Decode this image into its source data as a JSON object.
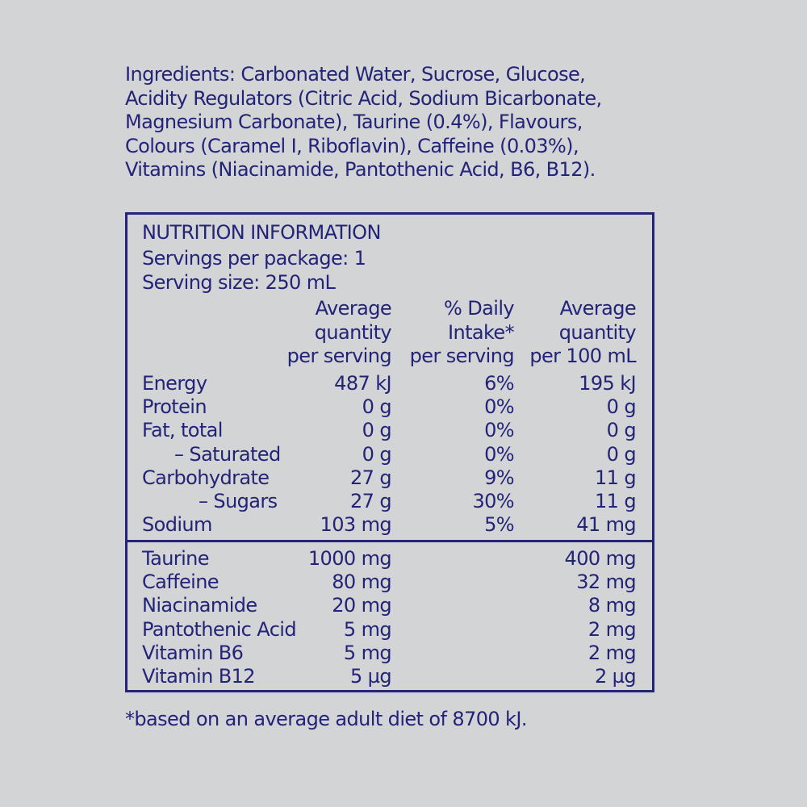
{
  "ingredients": {
    "lines": [
      "Ingredients: Carbonated Water, Sucrose, Glucose,",
      "Acidity Regulators (Citric Acid, Sodium Bicarbonate,",
      "Magnesium Carbonate), Taurine (0.4%), Flavours,",
      "Colours (Caramel I, Riboflavin), Caffeine (0.03%),",
      "Vitamins (Niacinamide, Pantothenic Acid, B6, B12)."
    ]
  },
  "nutrition": {
    "heading": "NUTRITION INFORMATION",
    "servings_per_package": "Servings per package: 1",
    "serving_size": "Serving size: 250 mL",
    "columns": [
      [
        "Average",
        "quantity",
        "per serving"
      ],
      [
        "% Daily",
        "Intake*",
        "per serving"
      ],
      [
        "Average",
        "quantity",
        "per 100 mL"
      ]
    ],
    "rows": [
      {
        "name": "Energy",
        "per_serving": "487 kJ",
        "daily_intake": "6%",
        "per_100ml": "195 kJ"
      },
      {
        "name": "Protein",
        "per_serving": "0 g",
        "daily_intake": "0%",
        "per_100ml": "0 g"
      },
      {
        "name": "Fat, total",
        "per_serving": "0 g",
        "daily_intake": "0%",
        "per_100ml": "0 g"
      },
      {
        "name": "– Saturated",
        "per_serving": "0 g",
        "daily_intake": "0%",
        "per_100ml": "0 g"
      },
      {
        "name": "Carbohydrate",
        "per_serving": "27 g",
        "daily_intake": "9%",
        "per_100ml": "11 g"
      },
      {
        "name": "– Sugars",
        "per_serving": "27 g",
        "daily_intake": "30%",
        "per_100ml": "11 g"
      },
      {
        "name": "Sodium",
        "per_serving": "103 mg",
        "daily_intake": "5%",
        "per_100ml": "41 mg"
      }
    ],
    "extra_rows": [
      {
        "name": "Taurine",
        "per_serving": "1000 mg",
        "per_100ml": "400 mg"
      },
      {
        "name": "Caffeine",
        "per_serving": "80 mg",
        "per_100ml": "32 mg"
      },
      {
        "name": "Niacinamide",
        "per_serving": "20 mg",
        "per_100ml": "8 mg"
      },
      {
        "name": "Pantothenic Acid",
        "per_serving": "5 mg",
        "per_100ml": "2 mg"
      },
      {
        "name": "Vitamin B6",
        "per_serving": "5 mg",
        "per_100ml": "2 mg"
      },
      {
        "name": "Vitamin B12",
        "per_serving": "5  µg",
        "per_100ml": "2  µg"
      }
    ]
  },
  "footnote": "*based on an average adult diet of 8700 kJ.",
  "colors": {
    "text": "#232377",
    "background": "#d3d4d6"
  }
}
